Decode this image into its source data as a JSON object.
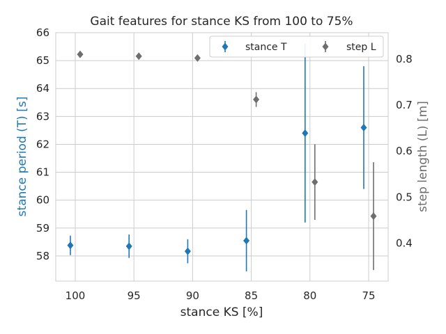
{
  "chart_data": {
    "type": "scatter",
    "title": "Gait features for stance KS from 100 to 75%",
    "xlabel": "stance KS [%]",
    "ylabel_left": "stance period (T) [s]",
    "ylabel_right": "step length (L) [m]",
    "categories": [
      "100",
      "95",
      "90",
      "85",
      "80",
      "75"
    ],
    "ylim_left": [
      57.1,
      66
    ],
    "ylim_right": [
      0.318,
      0.857
    ],
    "yticks_left": [
      58,
      59,
      60,
      61,
      62,
      63,
      64,
      65,
      66
    ],
    "yticks_right": [
      0.4,
      0.5,
      0.6,
      0.7,
      0.8
    ],
    "grid": true,
    "legend_position": "top-right",
    "colors": {
      "stance": "#1f77b4",
      "step": "#6e6e6e",
      "grid": "#cccccc",
      "left_label": "#1f77b4",
      "right_label": "#6e6e6e"
    },
    "series": [
      {
        "name": "stance T",
        "axis": "left",
        "marker": "diamond",
        "values": [
          58.38,
          58.35,
          58.17,
          58.55,
          62.4,
          62.6
        ],
        "errors": [
          0.35,
          0.42,
          0.43,
          1.1,
          3.2,
          2.2
        ]
      },
      {
        "name": "step L",
        "axis": "right",
        "marker": "diamond",
        "values": [
          0.81,
          0.806,
          0.802,
          0.712,
          0.533,
          0.459
        ],
        "errors": [
          0.002,
          0.003,
          0.004,
          0.016,
          0.082,
          0.117
        ]
      }
    ]
  }
}
